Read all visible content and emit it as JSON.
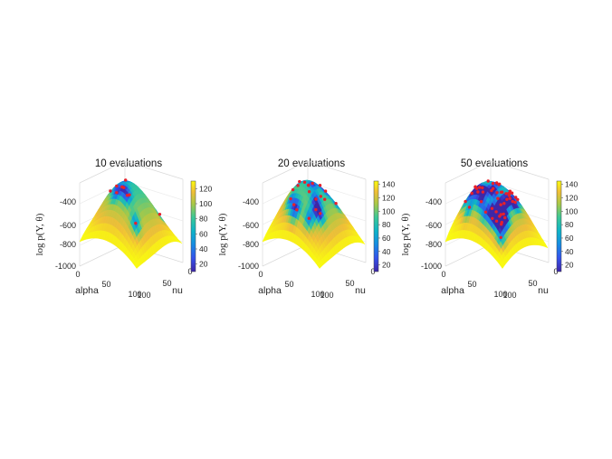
{
  "chart_data": [
    {
      "type": "surface",
      "title": "10 evaluations",
      "zlabel": "log p(Y, θ)",
      "xlabel": "alpha",
      "ylabel": "nu",
      "zticks": [
        "-400",
        "-600",
        "-800",
        "-1000"
      ],
      "xticks": [
        "0",
        "50",
        "100"
      ],
      "yticks": [
        "100",
        "50",
        "0"
      ],
      "colorbar_ticks": [
        "120",
        "100",
        "80",
        "60",
        "40",
        "20"
      ],
      "colorbar_range": [
        10,
        130
      ],
      "evaluation_count": 10
    },
    {
      "type": "surface",
      "title": "20 evaluations",
      "zlabel": "log p(Y, θ)",
      "xlabel": "alpha",
      "ylabel": "nu",
      "zticks": [
        "-400",
        "-600",
        "-800",
        "-1000"
      ],
      "xticks": [
        "0",
        "50",
        "100"
      ],
      "yticks": [
        "100",
        "50",
        "0"
      ],
      "colorbar_ticks": [
        "140",
        "120",
        "100",
        "80",
        "60",
        "40",
        "20"
      ],
      "colorbar_range": [
        10,
        145
      ],
      "evaluation_count": 20
    },
    {
      "type": "surface",
      "title": "50 evaluations",
      "zlabel": "log p(Y, θ)",
      "xlabel": "alpha",
      "ylabel": "nu",
      "zticks": [
        "-400",
        "-600",
        "-800",
        "-1000"
      ],
      "xticks": [
        "0",
        "50",
        "100"
      ],
      "yticks": [
        "100",
        "50",
        "0"
      ],
      "colorbar_ticks": [
        "140",
        "120",
        "100",
        "80",
        "60",
        "40",
        "20"
      ],
      "colorbar_range": [
        10,
        145
      ],
      "evaluation_count": 50
    }
  ],
  "colors": {
    "parula_low": "#3e26a8",
    "parula_mid": "#1fc0b8",
    "parula_high": "#f9fb0e",
    "point_color": "#e8202a",
    "axis_color": "#262626"
  }
}
